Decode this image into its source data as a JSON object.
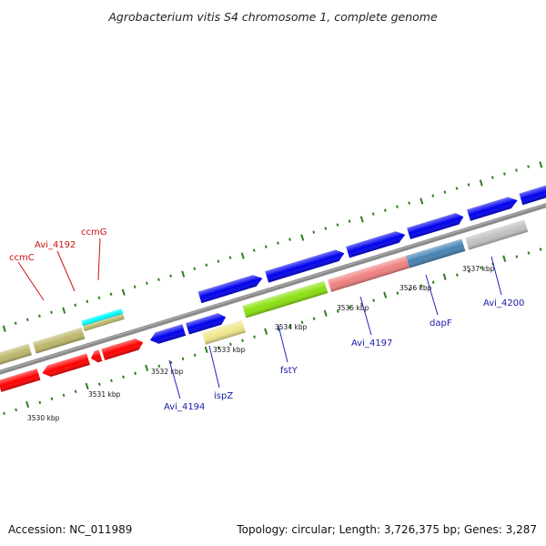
{
  "title": "Agrobacterium vitis S4 chromosome 1, complete genome",
  "footer": {
    "accession": "Accession: NC_011989",
    "summary": "Topology: circular; Length: 3,726,375 bp; Genes: 3,287"
  },
  "colors": {
    "backbone": "#8a8a8a",
    "tick": "#2e7d1e",
    "label_forward": "#cc1111",
    "label_reverse": "#1a1aaa",
    "label_line_forward": "#cc1111",
    "label_line_reverse": "#2222bb"
  },
  "ruler_labels": [
    "3530 kbp",
    "3531 kbp",
    "3532 kbp",
    "3533 kbp",
    "3534 kbp",
    "3535 kbp",
    "3536 kbp",
    "3537 kbp"
  ],
  "gene_labels": {
    "top": [
      "ccmC",
      "Avi_4192",
      "ccmG"
    ],
    "bottom": [
      "Avi_4194",
      "ispZ",
      "fstY",
      "Avi_4197",
      "dapF",
      "Avi_4200"
    ]
  },
  "feature_colors": {
    "olive": "#bdb76b",
    "red": "#ff0000",
    "cyan": "#00ffff",
    "blue": "#0000ee",
    "khaki": "#f0e68c",
    "green": "#8be00f",
    "salmon": "#f08080",
    "steel": "#4682b4",
    "gray": "#c0c0c0"
  }
}
